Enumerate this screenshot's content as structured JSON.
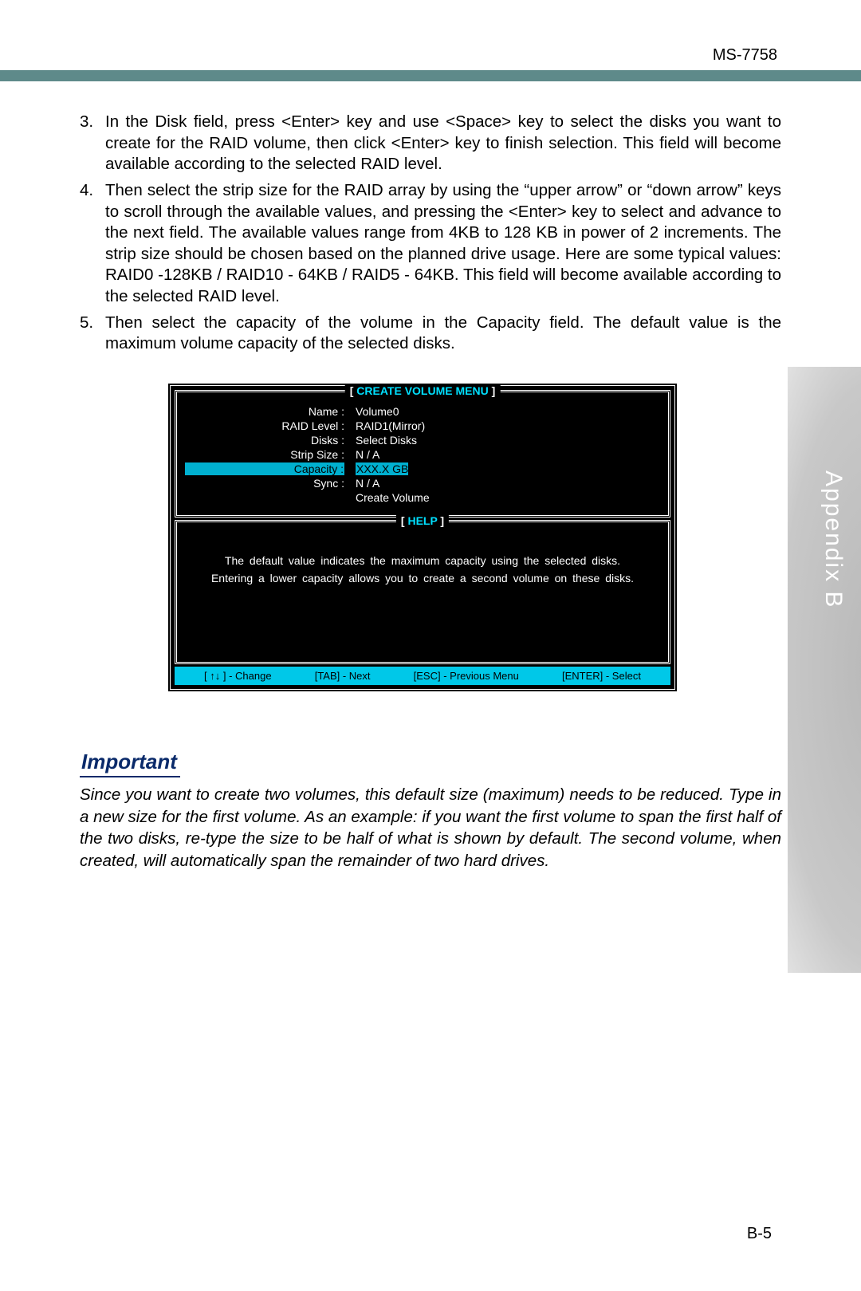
{
  "header": {
    "model": "MS-7758",
    "bar_color": "#5e8a8a"
  },
  "list": {
    "item3_num": "3.",
    "item3_text": "In the Disk field, press <Enter> key and use <Space> key to select the disks you want to create for the RAID volume, then click <Enter> key to finish selection. This field will become available according to the selected RAID level.",
    "item4_num": "4.",
    "item4_text": "Then select the strip size for the RAID array by using the “upper arrow” or “down arrow” keys to scroll through the available values, and pressing the <Enter> key to select and advance to the next field. The available values range from 4KB to 128 KB in power of 2 increments. The strip size should be chosen based on the planned drive usage. Here are some typical values: RAID0 -128KB / RAID10 - 64KB / RAID5 - 64KB. This field will become available according to the selected RAID level.",
    "item5_num": "5.",
    "item5_text": "Then select the capacity of the volume in the Capacity field. The default value is the maximum volume capacity of the selected disks."
  },
  "bios": {
    "menu_title": "CREATE VOLUME MENU",
    "help_title": "HELP",
    "fields": {
      "name_l": "Name :",
      "name_v": "Volume0",
      "raid_l": "RAID Level :",
      "raid_v": "RAID1(Mirror)",
      "disks_l": "Disks :",
      "disks_v": "Select Disks",
      "strip_l": "Strip Size :",
      "strip_v": "N / A",
      "cap_l": "Capacity :",
      "cap_v": "XXX.X  GB",
      "sync_l": "Sync :",
      "sync_v": "N / A",
      "create_v": "Create Volume"
    },
    "help_text": "The default value indicates the maximum capacity using the selected disks. Entering a lower capacity allows you to create a second volume on these disks.",
    "footer": {
      "k1": "[ ↑↓ ] - Change",
      "k2": "[TAB] - Next",
      "k3": "[ESC] - Previous Menu",
      "k4": "[ENTER] - Select"
    },
    "colors": {
      "bg": "#000000",
      "text": "#ffffff",
      "accent": "#00c8e8",
      "title": "#00e0ff",
      "highlight_bg": "#00b0d0"
    }
  },
  "side_tab": "Appendix B",
  "important": {
    "heading": "Important",
    "heading_color": "#0a2a6a",
    "text": "Since you want to create two volumes, this default size (maximum) needs to be reduced. Type in a new size for the first volume. As an example: if you want the first volume to span the first half of the two disks, re-type the size to be half of what is shown by default. The second volume, when created, will automatically span the remainder of two hard drives."
  },
  "page_number": "B-5"
}
